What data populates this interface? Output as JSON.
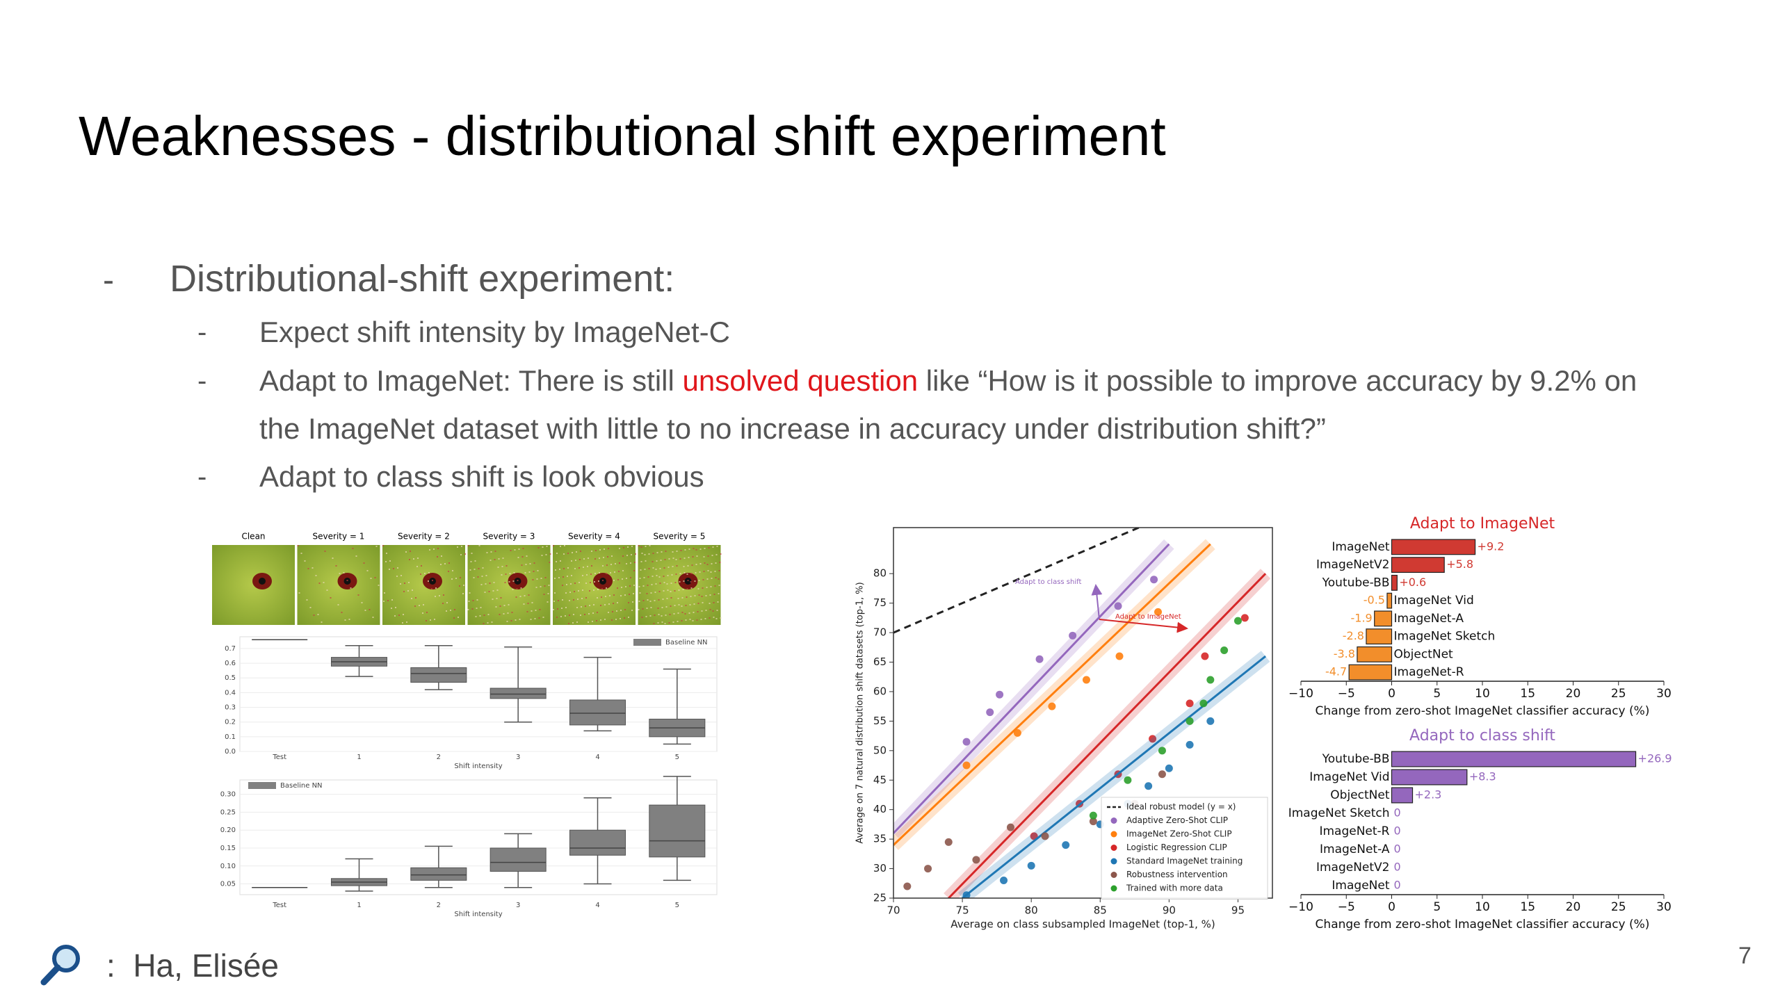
{
  "title": "Weaknesses - distributional shift experiment",
  "bullets": {
    "main": "Distributional-shift experiment:",
    "sub": [
      [
        "Expect shift intensity by ImageNet-C"
      ],
      [
        "Adapt to ImageNet: There is still ",
        "unsolved question",
        " like “How is it possible to improve accuracy by 9.2% on the ImageNet dataset with little to no increase in accuracy under distribution shift?”"
      ],
      [
        "Adapt to class shift is look obvious"
      ]
    ]
  },
  "charts": [
    {
      "type": "box",
      "image_labels": [
        "Clean",
        "Severity = 1",
        "Severity = 2",
        "Severity = 3",
        "Severity = 4",
        "Severity = 5"
      ],
      "panels": [
        {
          "legend": "Baseline NN",
          "legend_corner": "upper right",
          "xlabel": "Shift intensity",
          "color": "#808080",
          "categories": [
            "Test",
            "1",
            "2",
            "3",
            "4",
            "5"
          ],
          "ylim": [
            0,
            0.78
          ],
          "yticks": [
            {
              "value": 0,
              "label": "0.0"
            },
            0.1,
            0.2,
            0.3,
            0.4,
            0.5,
            0.6,
            0.7
          ],
          "boxes": [
            {
              "min": 0.76,
              "q1": 0.76,
              "median": 0.76,
              "q3": 0.76,
              "max": 0.76
            },
            {
              "min": 0.51,
              "q1": 0.58,
              "median": 0.61,
              "q3": 0.64,
              "max": 0.72
            },
            {
              "min": 0.42,
              "q1": 0.47,
              "median": 0.53,
              "q3": 0.57,
              "max": 0.72
            },
            {
              "min": 0.2,
              "q1": 0.36,
              "median": 0.39,
              "q3": 0.43,
              "max": 0.71
            },
            {
              "min": 0.14,
              "q1": 0.18,
              "median": 0.26,
              "q3": 0.35,
              "max": 0.64
            },
            {
              "min": 0.05,
              "q1": 0.1,
              "median": 0.16,
              "q3": 0.22,
              "max": 0.56
            }
          ]
        },
        {
          "legend": "Baseline NN",
          "legend_corner": "upper left",
          "xlabel": "Shift intensity",
          "color": "#808080",
          "categories": [
            "Test",
            "1",
            "2",
            "3",
            "4",
            "5"
          ],
          "ylim": [
            0.02,
            0.34
          ],
          "yticks": [
            0.05,
            {
              "value": 0.1,
              "label": "0.10"
            },
            0.15,
            {
              "value": 0.2,
              "label": "0.20"
            },
            0.25,
            {
              "value": 0.3,
              "label": "0.30"
            }
          ],
          "boxes": [
            {
              "min": 0.04,
              "q1": 0.04,
              "median": 0.04,
              "q3": 0.04,
              "max": 0.04
            },
            {
              "min": 0.03,
              "q1": 0.045,
              "median": 0.055,
              "q3": 0.065,
              "max": 0.12
            },
            {
              "min": 0.04,
              "q1": 0.06,
              "median": 0.075,
              "q3": 0.095,
              "max": 0.155
            },
            {
              "min": 0.04,
              "q1": 0.085,
              "median": 0.11,
              "q3": 0.15,
              "max": 0.19
            },
            {
              "min": 0.05,
              "q1": 0.13,
              "median": 0.15,
              "q3": 0.2,
              "max": 0.29
            },
            {
              "min": 0.06,
              "q1": 0.125,
              "median": 0.17,
              "q3": 0.27,
              "max": 0.35
            }
          ]
        }
      ]
    },
    {
      "type": "scatter",
      "xlabel": "Average on class subsampled ImageNet (top-1, %)",
      "ylabel": "Average on 7 natural distribution shift datasets (top-1, %)",
      "xlim": [
        70,
        97.5
      ],
      "ylim": [
        25,
        87.8
      ],
      "xticks": [
        70,
        75,
        80,
        85,
        90,
        95
      ],
      "yticks": [
        25,
        30,
        35,
        40,
        45,
        50,
        55,
        60,
        65,
        70,
        75,
        80
      ],
      "ideal_label": "Ideal robust model (y = x)",
      "legend_corner": "lower right",
      "annotations": [
        "Adapt to class shift",
        "Adapt to ImageNet"
      ],
      "series": [
        {
          "name": "Adaptive Zero-Shot CLIP",
          "color": "#9467bd",
          "x": [
            75.3,
            77.0,
            77.7,
            80.6,
            83.0,
            86.3,
            88.9
          ],
          "y": [
            51.5,
            56.5,
            59.5,
            65.5,
            69.5,
            74.5,
            79.0
          ],
          "trend": {
            "x": [
              70,
              90
            ],
            "y": [
              36,
              85
            ]
          }
        },
        {
          "name": "ImageNet Zero-Shot CLIP",
          "color": "#ff7f0e",
          "x": [
            75.3,
            79.0,
            81.5,
            84.0,
            86.4,
            89.2
          ],
          "y": [
            47.5,
            53.0,
            57.5,
            62.0,
            66.0,
            73.5
          ],
          "trend": {
            "x": [
              70,
              93
            ],
            "y": [
              34,
              85
            ]
          }
        },
        {
          "name": "Logistic Regression CLIP",
          "color": "#d62728",
          "x": [
            80.2,
            83.5,
            86.3,
            88.8,
            91.5,
            92.6,
            95.5
          ],
          "y": [
            35.5,
            41,
            46,
            52,
            58,
            66,
            72.5
          ],
          "trend": {
            "x": [
              74,
              97
            ],
            "y": [
              25,
              80
            ]
          }
        },
        {
          "name": "Standard ImageNet training",
          "color": "#1f77b4",
          "x": [
            75.3,
            78,
            80,
            82.5,
            85,
            87,
            88.5,
            90,
            91.5,
            93
          ],
          "y": [
            25.5,
            28,
            30.5,
            34,
            37.5,
            41,
            44,
            47,
            51,
            55
          ],
          "trend": {
            "x": [
              75,
              97
            ],
            "y": [
              25,
              66
            ]
          }
        },
        {
          "name": "Robustness intervention",
          "color": "#8c564b",
          "x": [
            71,
            72.5,
            74,
            76,
            78.5,
            81,
            84.5,
            87.5,
            89.5
          ],
          "y": [
            27,
            30,
            34.5,
            31.5,
            37,
            35.5,
            38,
            41,
            46
          ]
        },
        {
          "name": "Trained with more data",
          "color": "#2ca02c",
          "x": [
            84.5,
            87,
            89.5,
            91.5,
            92.5,
            93,
            94,
            95
          ],
          "y": [
            39,
            45,
            50,
            55,
            58,
            62,
            67,
            72
          ]
        }
      ]
    },
    {
      "type": "hbar",
      "title": "Adapt to ImageNet",
      "title_color": "#d62728",
      "categories": [
        "ImageNet",
        "ImageNetV2",
        "Youtube-BB",
        "ImageNet Vid",
        "ImageNet-A",
        "ImageNet Sketch",
        "ObjectNet",
        "ImageNet-R"
      ],
      "values": [
        9.2,
        5.8,
        0.6,
        -0.5,
        -1.9,
        -2.8,
        -3.8,
        -4.7
      ],
      "value_labels": [
        "+9.2",
        "+5.8",
        "+0.6",
        "-0.5",
        "-1.9",
        "-2.8",
        "-3.8",
        "-4.7"
      ],
      "color": "#d03a32",
      "negative_color": "#f28e2b",
      "xlim": [
        -10,
        30
      ],
      "xticks": [
        {
          "value": -10,
          "label": "−10"
        },
        {
          "value": -5,
          "label": "−5"
        },
        0,
        5,
        10,
        15,
        20,
        25,
        30
      ],
      "xlabel": "Change from zero-shot ImageNet classifier accuracy (%)"
    },
    {
      "type": "hbar",
      "title": "Adapt to class shift",
      "title_color": "#9467bd",
      "categories": [
        "Youtube-BB",
        "ImageNet Vid",
        "ObjectNet",
        "ImageNet Sketch",
        "ImageNet-R",
        "ImageNet-A",
        "ImageNetV2",
        "ImageNet"
      ],
      "values": [
        26.9,
        8.3,
        2.3,
        0,
        0,
        0,
        0,
        0
      ],
      "value_labels": [
        "+26.9",
        "+8.3",
        "+2.3",
        "0",
        "0",
        "0",
        "0",
        "0"
      ],
      "color": "#9467bd",
      "negative_color": "#9467bd",
      "xlim": [
        -10,
        30
      ],
      "xticks": [
        {
          "value": -10,
          "label": "−10"
        },
        {
          "value": -5,
          "label": "−5"
        },
        0,
        5,
        10,
        15,
        20,
        25,
        30
      ],
      "xlabel": "Change from zero-shot ImageNet classifier accuracy (%)"
    }
  ],
  "footer": {
    "author": ":  Ha, Elisée",
    "page": "7"
  }
}
